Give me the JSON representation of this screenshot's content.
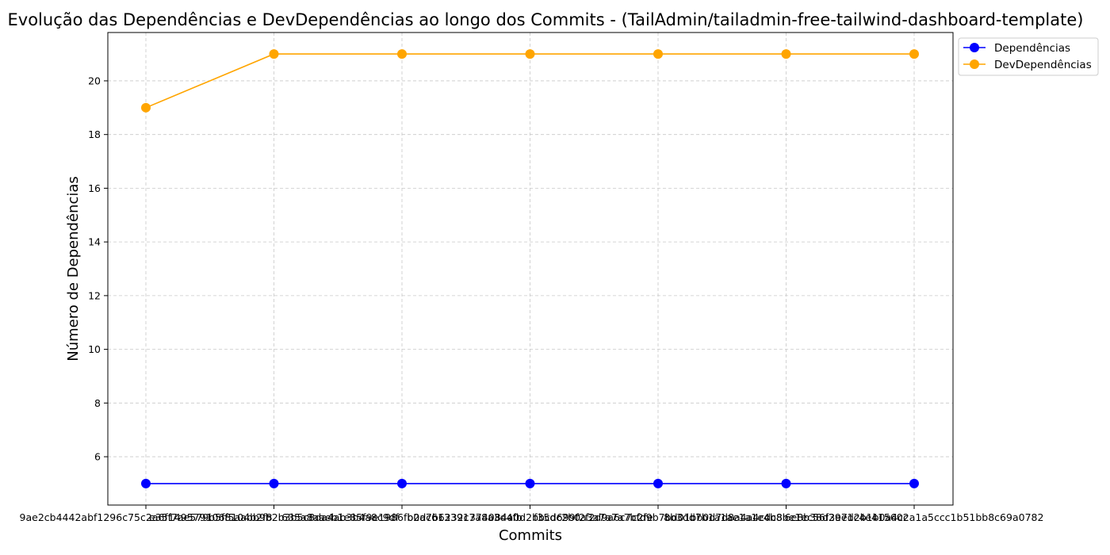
{
  "chart_data": {
    "type": "line",
    "title": "Evolução das Dependências e DevDependências ao longo dos Commits - (TailAdmin/tailadmin-free-tailwind-dashboard-template)",
    "xlabel": "Commits",
    "ylabel": "Número de Dependências",
    "categories": [
      "9ae2cb4442abf1296c75c2a6f1495791068104b2f8",
      "e35f7ae579b5ff5aabb9b2b3b5c8da4ab3b4a8c9df",
      "635a8aaeb1e85f9e1986fb2a7b6232c7a8a3d4fb",
      "b0dc613391374084a0d2bbcd699f2f2d9a6c7c2fe",
      "f35dc2b0a3a7a7a7bfd9b7bd01bb0d7d8a4a4cdc8",
      "8b3dd7b1a1ae1a1e4b8be1ec56f3e7d2b1b0a4cc",
      "6e8b38d29e1c4e415602a1a5ccc1b51bb8c69a0782"
    ],
    "series": [
      {
        "name": "Dependências",
        "color": "#0000ff",
        "values": [
          5,
          5,
          5,
          5,
          5,
          5,
          5
        ]
      },
      {
        "name": "DevDependências",
        "color": "#ffa500",
        "values": [
          19,
          21,
          21,
          21,
          21,
          21,
          21
        ]
      }
    ],
    "ylim": [
      4.2,
      21.8
    ],
    "yticks": [
      6,
      8,
      10,
      12,
      14,
      16,
      18,
      20
    ],
    "grid": true,
    "legend_position": "upper-right-outside"
  }
}
